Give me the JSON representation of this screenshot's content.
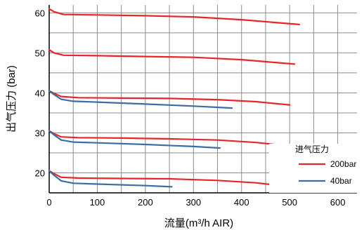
{
  "chart_data": {
    "type": "line",
    "title": "",
    "xlabel": "流量(m³/h AIR)",
    "ylabel": "出气压力 (bar)",
    "xlim": [
      0,
      640
    ],
    "ylim": [
      15,
      62
    ],
    "x_ticks": [
      "0",
      "100",
      "200",
      "300",
      "400",
      "500",
      "600"
    ],
    "y_ticks": [
      "20",
      "30",
      "40",
      "50",
      "60"
    ],
    "grid": true,
    "legend": {
      "title": "进气压力",
      "placement": "bottom-right",
      "entries": [
        {
          "label": "200bar",
          "color": "#e8262a"
        },
        {
          "label": "40bar",
          "color": "#3a6ea5"
        }
      ]
    },
    "series": [
      {
        "group": "200bar",
        "color": "#e8262a",
        "points": [
          [
            0,
            61
          ],
          [
            10,
            60.3
          ],
          [
            30,
            59.6
          ],
          [
            100,
            59.5
          ],
          [
            200,
            59.3
          ],
          [
            300,
            59
          ],
          [
            400,
            58.3
          ],
          [
            470,
            57.6
          ],
          [
            520,
            57.1
          ]
        ]
      },
      {
        "group": "200bar",
        "color": "#e8262a",
        "points": [
          [
            0,
            50.8
          ],
          [
            10,
            50
          ],
          [
            30,
            49.4
          ],
          [
            100,
            49.3
          ],
          [
            200,
            49.1
          ],
          [
            300,
            48.9
          ],
          [
            400,
            48.3
          ],
          [
            470,
            47.6
          ],
          [
            510,
            47.2
          ]
        ]
      },
      {
        "group": "200bar",
        "color": "#e8262a",
        "points": [
          [
            0,
            40.5
          ],
          [
            10,
            39.9
          ],
          [
            25,
            39.1
          ],
          [
            60,
            38.8
          ],
          [
            150,
            38.7
          ],
          [
            250,
            38.6
          ],
          [
            350,
            38.3
          ],
          [
            430,
            37.8
          ],
          [
            500,
            37
          ]
        ]
      },
      {
        "group": "200bar",
        "color": "#e8262a",
        "points": [
          [
            0,
            30.5
          ],
          [
            10,
            29.8
          ],
          [
            25,
            29
          ],
          [
            60,
            28.8
          ],
          [
            150,
            28.7
          ],
          [
            250,
            28.5
          ],
          [
            350,
            28.2
          ],
          [
            430,
            27.6
          ],
          [
            485,
            26.9
          ]
        ]
      },
      {
        "group": "200bar",
        "color": "#e8262a",
        "points": [
          [
            0,
            20.5
          ],
          [
            10,
            19.8
          ],
          [
            25,
            18.9
          ],
          [
            60,
            18.7
          ],
          [
            150,
            18.6
          ],
          [
            250,
            18.5
          ],
          [
            350,
            18.1
          ],
          [
            430,
            17.5
          ],
          [
            475,
            16.9
          ]
        ]
      },
      {
        "group": "40bar",
        "color": "#3a6ea5",
        "points": [
          [
            0,
            40.5
          ],
          [
            10,
            39.6
          ],
          [
            25,
            38.4
          ],
          [
            50,
            37.9
          ],
          [
            100,
            37.7
          ],
          [
            200,
            37.2
          ],
          [
            300,
            36.7
          ],
          [
            380,
            36.2
          ]
        ]
      },
      {
        "group": "40bar",
        "color": "#3a6ea5",
        "points": [
          [
            0,
            30.5
          ],
          [
            10,
            29.5
          ],
          [
            25,
            28.2
          ],
          [
            50,
            27.7
          ],
          [
            100,
            27.5
          ],
          [
            200,
            27.1
          ],
          [
            300,
            26.6
          ],
          [
            355,
            26.2
          ]
        ]
      },
      {
        "group": "40bar",
        "color": "#3a6ea5",
        "points": [
          [
            0,
            20.5
          ],
          [
            10,
            19.4
          ],
          [
            25,
            18
          ],
          [
            50,
            17.4
          ],
          [
            100,
            17.2
          ],
          [
            200,
            16.8
          ],
          [
            255,
            16.5
          ]
        ]
      }
    ]
  }
}
